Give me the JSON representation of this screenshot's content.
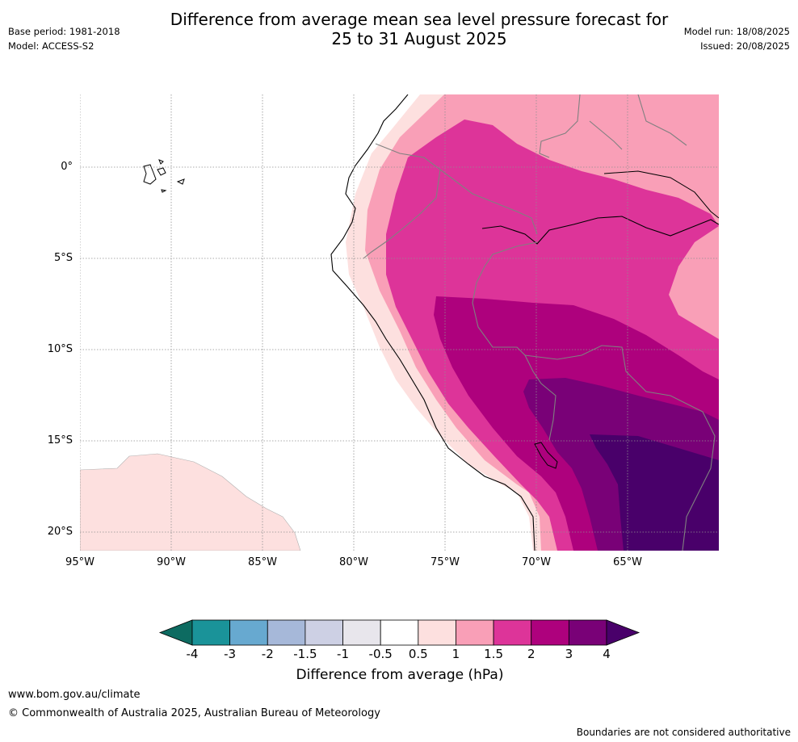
{
  "header": {
    "title_line1": "Difference from average mean sea level pressure forecast for",
    "title_line2": "25 to 31 August 2025",
    "base_period": "Base period: 1981-2018",
    "model": "Model: ACCESS-S2",
    "model_run": "Model run: 18/08/2025",
    "issued": "Issued: 20/08/2025"
  },
  "map": {
    "lat_labels": [
      "0°",
      "5°S",
      "10°S",
      "15°S",
      "20°S"
    ],
    "lon_labels": [
      "95°W",
      "90°W",
      "85°W",
      "80°W",
      "75°W",
      "70°W",
      "65°W"
    ]
  },
  "colorbar": {
    "ticks": [
      "-4",
      "-3",
      "-2",
      "-1.5",
      "-1",
      "-0.5",
      "0.5",
      "1",
      "1.5",
      "2",
      "3",
      "4"
    ],
    "colors": [
      "#1a9399",
      "#67a9d0",
      "#a6b8d9",
      "#cdd0e4",
      "#e8e6ec",
      "#ffffff",
      "#fde0df",
      "#f99fb7",
      "#dd3499",
      "#ae017d",
      "#790177"
    ],
    "low_color": "#0d6b61",
    "high_color": "#49006a",
    "label": "Difference from average (hPa)"
  },
  "footer": {
    "url": "www.bom.gov.au/climate",
    "copyright": "© Commonwealth of Australia 2025, Australian Bureau of Meteorology",
    "disclaimer": "Boundaries are not considered authoritative"
  }
}
